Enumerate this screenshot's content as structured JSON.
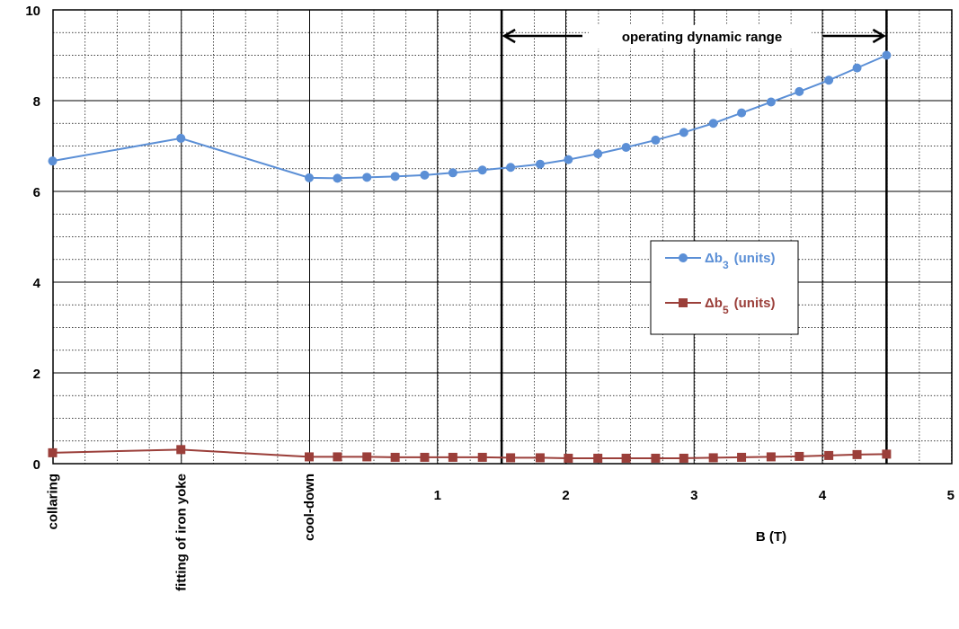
{
  "chart_data": {
    "type": "line",
    "xlabel": "B (T)",
    "ylabel": "",
    "ylim": [
      0,
      10
    ],
    "y_ticks": [
      "0",
      "2",
      "4",
      "6",
      "8",
      "10"
    ],
    "x_numeric_ticks": [
      "1",
      "2",
      "3",
      "4",
      "5"
    ],
    "x_category_labels": [
      "collaring",
      "fitting of iron yoke",
      "cool-down"
    ],
    "grid": true,
    "legend_position": "center-right",
    "annotation": "operating dynamic range",
    "range_markers_B": [
      1.5,
      4.5
    ],
    "x_positions_B": [
      -2.0,
      -1.0,
      0.0,
      0.22,
      0.45,
      0.67,
      0.9,
      1.12,
      1.35,
      1.57,
      1.8,
      2.02,
      2.25,
      2.47,
      2.7,
      2.92,
      3.15,
      3.37,
      3.6,
      3.82,
      4.05,
      4.27,
      4.5
    ],
    "series": [
      {
        "name": "Δb3 (units)",
        "label_main": "Δb",
        "label_sub": "3",
        "label_unit": "(units)",
        "color": "#5b8fd6",
        "marker": "circle",
        "values": [
          6.67,
          7.17,
          6.3,
          6.29,
          6.31,
          6.33,
          6.36,
          6.41,
          6.47,
          6.53,
          6.6,
          6.7,
          6.83,
          6.97,
          7.13,
          7.3,
          7.5,
          7.73,
          7.97,
          8.2,
          8.45,
          8.72,
          9.0
        ]
      },
      {
        "name": "Δb5 (units)",
        "label_main": "Δb",
        "label_sub": "5",
        "label_unit": "(units)",
        "color": "#9b3f3a",
        "marker": "square",
        "values": [
          0.24,
          0.31,
          0.15,
          0.15,
          0.15,
          0.14,
          0.14,
          0.14,
          0.14,
          0.13,
          0.13,
          0.12,
          0.12,
          0.12,
          0.12,
          0.12,
          0.13,
          0.14,
          0.15,
          0.16,
          0.18,
          0.2,
          0.21
        ]
      }
    ]
  }
}
